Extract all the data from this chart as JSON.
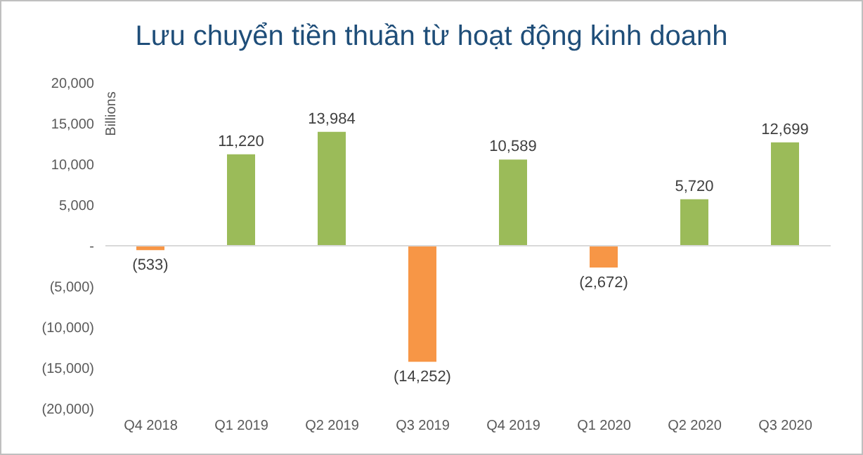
{
  "chart_data": {
    "type": "bar",
    "title": "Lưu chuyển tiền thuần từ hoạt động kinh doanh",
    "ylabel": "Billions",
    "categories": [
      "Q4 2018",
      "Q1 2019",
      "Q2 2019",
      "Q3 2019",
      "Q4 2019",
      "Q1 2020",
      "Q2 2020",
      "Q3 2020"
    ],
    "values": [
      -533,
      11220,
      13984,
      -14252,
      10589,
      -2672,
      5720,
      12699
    ],
    "colors": [
      "#f79646",
      "#9bbb59",
      "#9bbb59",
      "#f79646",
      "#9bbb59",
      "#f79646",
      "#9bbb59",
      "#9bbb59"
    ],
    "value_labels": [
      "(533)",
      "11,220",
      "13,984",
      "(14,252)",
      "10,589",
      "(2,672)",
      "5,720",
      "12,699"
    ],
    "ylim": [
      -20000,
      20000
    ],
    "yticks": [
      {
        "value": 20000,
        "label": "20,000"
      },
      {
        "value": 15000,
        "label": "15,000"
      },
      {
        "value": 10000,
        "label": "10,000"
      },
      {
        "value": 5000,
        "label": "5,000"
      },
      {
        "value": 0,
        "label": "-"
      },
      {
        "value": -5000,
        "label": "(5,000)"
      },
      {
        "value": -10000,
        "label": "(10,000)"
      },
      {
        "value": -15000,
        "label": "(15,000)"
      },
      {
        "value": -20000,
        "label": "(20,000)"
      }
    ],
    "ref_lines": [
      {
        "axis": "y",
        "value": 0,
        "color": "#d9d9d9"
      }
    ],
    "legend": false
  }
}
